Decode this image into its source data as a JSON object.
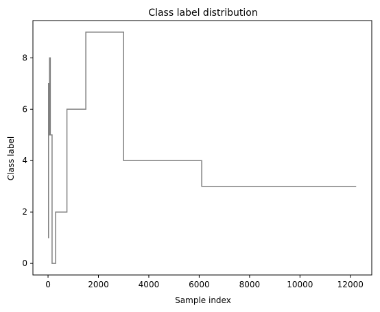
{
  "chart_data": {
    "type": "line",
    "title": "Class label distribution",
    "xlabel": "Sample index",
    "ylabel": "Class label",
    "xlim": [
      -600,
      12850
    ],
    "ylim": [
      -0.45,
      9.45
    ],
    "xticks": [
      0,
      2000,
      4000,
      6000,
      8000,
      10000,
      12000
    ],
    "yticks": [
      0,
      2,
      4,
      6,
      8
    ],
    "grid": false,
    "line_color": "#808080",
    "series": [
      {
        "drawstyle": "steps-post",
        "x": [
          0,
          20,
          40,
          60,
          90,
          160,
          300,
          750,
          1500,
          3000,
          6100,
          12230
        ],
        "y": [
          1,
          7,
          5,
          8,
          5,
          0,
          2,
          6,
          9,
          4,
          3,
          3
        ]
      }
    ]
  }
}
